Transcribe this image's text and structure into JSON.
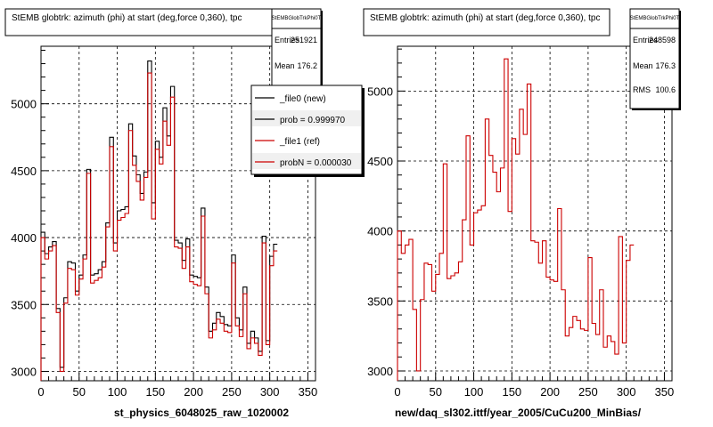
{
  "chart_data": [
    {
      "type": "line",
      "title": "StEMB globtrk: azimuth (phi) at start (deg,force 0,360), tpc",
      "xlabel": "st_physics_6048025_raw_1020002",
      "xlim": [
        0,
        360
      ],
      "ylim": [
        2930,
        5430
      ],
      "xticks": [
        0,
        50,
        100,
        150,
        200,
        250,
        300,
        350
      ],
      "yticks": [
        3000,
        3500,
        4000,
        4500,
        5000
      ],
      "grid": true,
      "stats": {
        "header": "StEMBGlobTrkPhi0T",
        "rows": [
          {
            "label": "Entries",
            "value": "251921"
          },
          {
            "label": "Mean",
            "value": "176.2"
          }
        ]
      },
      "legend": {
        "placement": "top-right",
        "entries": [
          {
            "label": "_file0 (new)",
            "color": "#000000"
          },
          {
            "label": "prob = 0.999970",
            "color": "#000000"
          },
          {
            "label": "_file1 (ref)",
            "color": "#cc0000"
          },
          {
            "label": "probN = 0.000030",
            "color": "#cc0000"
          }
        ]
      },
      "bin_width": 5,
      "series": [
        {
          "color": "#000000",
          "values": [
            4040,
            3880,
            3930,
            3970,
            3470,
            3030,
            3550,
            3820,
            3810,
            3600,
            3720,
            3870,
            4510,
            3720,
            3730,
            3760,
            3820,
            4110,
            4750,
            3960,
            4200,
            4210,
            4230,
            4850,
            4610,
            4470,
            4330,
            4490,
            5320,
            4260,
            4720,
            4600,
            4970,
            4760,
            5130,
            3980,
            3960,
            3830,
            3990,
            3720,
            3710,
            3700,
            4220,
            3630,
            3300,
            3360,
            3440,
            3410,
            3350,
            3340,
            3870,
            3400,
            3310,
            3630,
            3210,
            3300,
            3250,
            3150,
            4010,
            3230,
            3860,
            3950
          ]
        },
        {
          "color": "#cc0000",
          "values": [
            4000,
            3840,
            3900,
            3940,
            3440,
            3000,
            3510,
            3770,
            3760,
            3570,
            3690,
            3840,
            4480,
            3660,
            3680,
            3700,
            3780,
            4080,
            4680,
            3900,
            4130,
            4150,
            4180,
            4800,
            4540,
            4420,
            4280,
            4450,
            5230,
            4140,
            4660,
            4550,
            4870,
            4690,
            5050,
            3930,
            3920,
            3770,
            3930,
            3670,
            3650,
            3640,
            4160,
            3580,
            3250,
            3310,
            3390,
            3360,
            3300,
            3290,
            3810,
            3340,
            3260,
            3580,
            3170,
            3250,
            3210,
            3120,
            3960,
            3200,
            3790,
            3900
          ]
        }
      ]
    },
    {
      "type": "line",
      "title": "StEMB globtrk: azimuth (phi) at start (deg,force 0,360), tpc",
      "xlabel": "new/daq_sl302.ittf/year_2005/CuCu200_MinBias/",
      "xlim": [
        0,
        360
      ],
      "ylim": [
        2930,
        5320
      ],
      "xticks": [
        0,
        50,
        100,
        150,
        200,
        250,
        300,
        350
      ],
      "yticks": [
        3000,
        3500,
        4000,
        4500,
        5000
      ],
      "grid": true,
      "stats": {
        "header": "StEMBGlobTrkPhi0T",
        "rows": [
          {
            "label": "Entries",
            "value": "248598"
          },
          {
            "label": "Mean",
            "value": "176.3"
          },
          {
            "label": "RMS",
            "value": "100.6"
          }
        ]
      },
      "bin_width": 5,
      "series": [
        {
          "color": "#cc0000",
          "values": [
            4000,
            3840,
            3900,
            3940,
            3440,
            3000,
            3510,
            3770,
            3760,
            3570,
            3690,
            3840,
            4480,
            3660,
            3680,
            3700,
            3780,
            4080,
            4680,
            3900,
            4130,
            4150,
            4180,
            4800,
            4540,
            4420,
            4280,
            4450,
            5230,
            4140,
            4660,
            4550,
            4870,
            4690,
            5050,
            3930,
            3920,
            3770,
            3930,
            3670,
            3650,
            3640,
            4160,
            3580,
            3250,
            3310,
            3390,
            3360,
            3300,
            3290,
            3810,
            3340,
            3260,
            3580,
            3170,
            3250,
            3210,
            3120,
            3960,
            3200,
            3790,
            3900
          ]
        }
      ]
    }
  ]
}
